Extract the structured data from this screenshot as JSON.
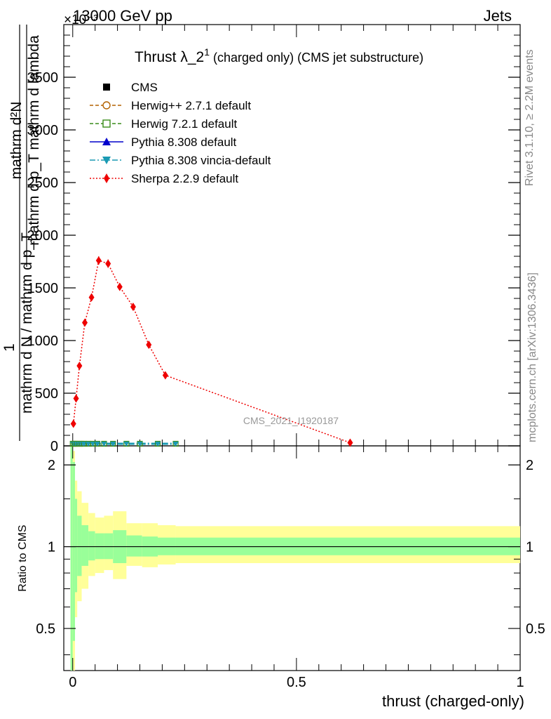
{
  "header": {
    "left": "13000 GeV pp",
    "right": "Jets",
    "exponent_label": "×10⁻³"
  },
  "main_title": "Thrust λ_2¹ (charged only) (CMS jet substructure)",
  "main_title_parts": {
    "main": "Thrust λ_2",
    "sup": "1",
    "rest": "(charged only) (CMS jet substructure)"
  },
  "side_labels": {
    "rivet": "Rivet 3.1.10, ≥ 2.2M events",
    "mcplots": "mcplots.cern.ch [arXiv:1306.3436]"
  },
  "watermark": "CMS_2021_I1920187",
  "legend": [
    {
      "name": "CMS",
      "color": "#000000",
      "marker": "square-filled",
      "line": "none"
    },
    {
      "name": "Herwig++ 2.7.1 default",
      "color": "#b36200",
      "marker": "circle-open",
      "line": "dashed"
    },
    {
      "name": "Herwig 7.2.1 default",
      "color": "#3a8c1a",
      "marker": "square-open",
      "line": "dashed"
    },
    {
      "name": "Pythia 8.308 default",
      "color": "#0000cc",
      "marker": "triangle-up",
      "line": "solid"
    },
    {
      "name": "Pythia 8.308 vincia-default",
      "color": "#1a9ab3",
      "marker": "triangle-down",
      "line": "dashdot"
    },
    {
      "name": "Sherpa 2.2.9 default",
      "color": "#ee0000",
      "marker": "diamond",
      "line": "dotted"
    }
  ],
  "chart_data": [
    {
      "type": "line",
      "panel": "main",
      "ylabel_parts": [
        "1",
        "mathrm d N / mathrm d p_T",
        "mathrm d²N",
        "mathrm d p_T mathrm d lambda"
      ],
      "xlim": [
        -0.02,
        1.0
      ],
      "ylim": [
        0,
        4000
      ],
      "y_scale_factor": "1e-3",
      "yticks": [
        0,
        500,
        1000,
        1500,
        2000,
        2500,
        3000,
        3500
      ],
      "ytick_labels": [
        "0",
        "500",
        "1000",
        "1500",
        "2000",
        "2500",
        "3000",
        "3500"
      ],
      "series": [
        {
          "name": "Sherpa 2.2.9 default",
          "x": [
            0.0015,
            0.0075,
            0.015,
            0.027,
            0.042,
            0.058,
            0.079,
            0.105,
            0.135,
            0.17,
            0.207,
            0.62
          ],
          "y": [
            210,
            450,
            760,
            1170,
            1410,
            1760,
            1730,
            1510,
            1320,
            960,
            670,
            30
          ],
          "yerr": [
            20,
            25,
            30,
            30,
            35,
            40,
            40,
            35,
            30,
            25,
            20,
            10
          ]
        }
      ],
      "near_zero_bins": {
        "x": [
          0.0,
          0.003,
          0.006,
          0.01,
          0.015,
          0.02,
          0.025,
          0.035,
          0.045,
          0.055,
          0.07,
          0.09,
          0.12,
          0.15,
          0.19,
          0.23
        ],
        "note": "other generators and CMS data plotted at ~0 on this scale"
      }
    },
    {
      "type": "area",
      "panel": "ratio",
      "ylabel": "Ratio to CMS",
      "xlabel": "thrust (charged-only)",
      "xlim": [
        -0.02,
        1.0
      ],
      "ylim": [
        0.35,
        2.35
      ],
      "yscale": "log",
      "xticks": [
        0,
        0.5,
        1
      ],
      "xtick_labels": [
        "0",
        "0.5",
        "1"
      ],
      "yticks": [
        0.5,
        1,
        2
      ],
      "ytick_labels": [
        "0.5",
        "1",
        "2"
      ],
      "reference_line": 1.0,
      "bins": [
        {
          "x0": -0.005,
          "x1": 0.0,
          "yellow": [
            0.35,
            2.35
          ],
          "green": [
            0.35,
            2.35
          ]
        },
        {
          "x0": 0.0,
          "x1": 0.005,
          "yellow": [
            0.35,
            2.25
          ],
          "green": [
            0.45,
            2.05
          ]
        },
        {
          "x0": 0.005,
          "x1": 0.01,
          "yellow": [
            0.55,
            1.75
          ],
          "green": [
            0.68,
            1.5
          ]
        },
        {
          "x0": 0.01,
          "x1": 0.02,
          "yellow": [
            0.63,
            1.6
          ],
          "green": [
            0.78,
            1.3
          ]
        },
        {
          "x0": 0.02,
          "x1": 0.035,
          "yellow": [
            0.7,
            1.45
          ],
          "green": [
            0.85,
            1.2
          ]
        },
        {
          "x0": 0.035,
          "x1": 0.05,
          "yellow": [
            0.78,
            1.33
          ],
          "green": [
            0.89,
            1.14
          ]
        },
        {
          "x0": 0.05,
          "x1": 0.07,
          "yellow": [
            0.8,
            1.28
          ],
          "green": [
            0.9,
            1.12
          ]
        },
        {
          "x0": 0.07,
          "x1": 0.09,
          "yellow": [
            0.82,
            1.3
          ],
          "green": [
            0.9,
            1.12
          ]
        },
        {
          "x0": 0.09,
          "x1": 0.12,
          "yellow": [
            0.76,
            1.35
          ],
          "green": [
            0.87,
            1.15
          ]
        },
        {
          "x0": 0.12,
          "x1": 0.155,
          "yellow": [
            0.85,
            1.22
          ],
          "green": [
            0.92,
            1.1
          ]
        },
        {
          "x0": 0.155,
          "x1": 0.19,
          "yellow": [
            0.84,
            1.22
          ],
          "green": [
            0.92,
            1.09
          ]
        },
        {
          "x0": 0.19,
          "x1": 0.23,
          "yellow": [
            0.86,
            1.2
          ],
          "green": [
            0.93,
            1.08
          ]
        },
        {
          "x0": 0.23,
          "x1": 1.0,
          "yellow": [
            0.87,
            1.19
          ],
          "green": [
            0.93,
            1.08
          ]
        }
      ]
    }
  ]
}
